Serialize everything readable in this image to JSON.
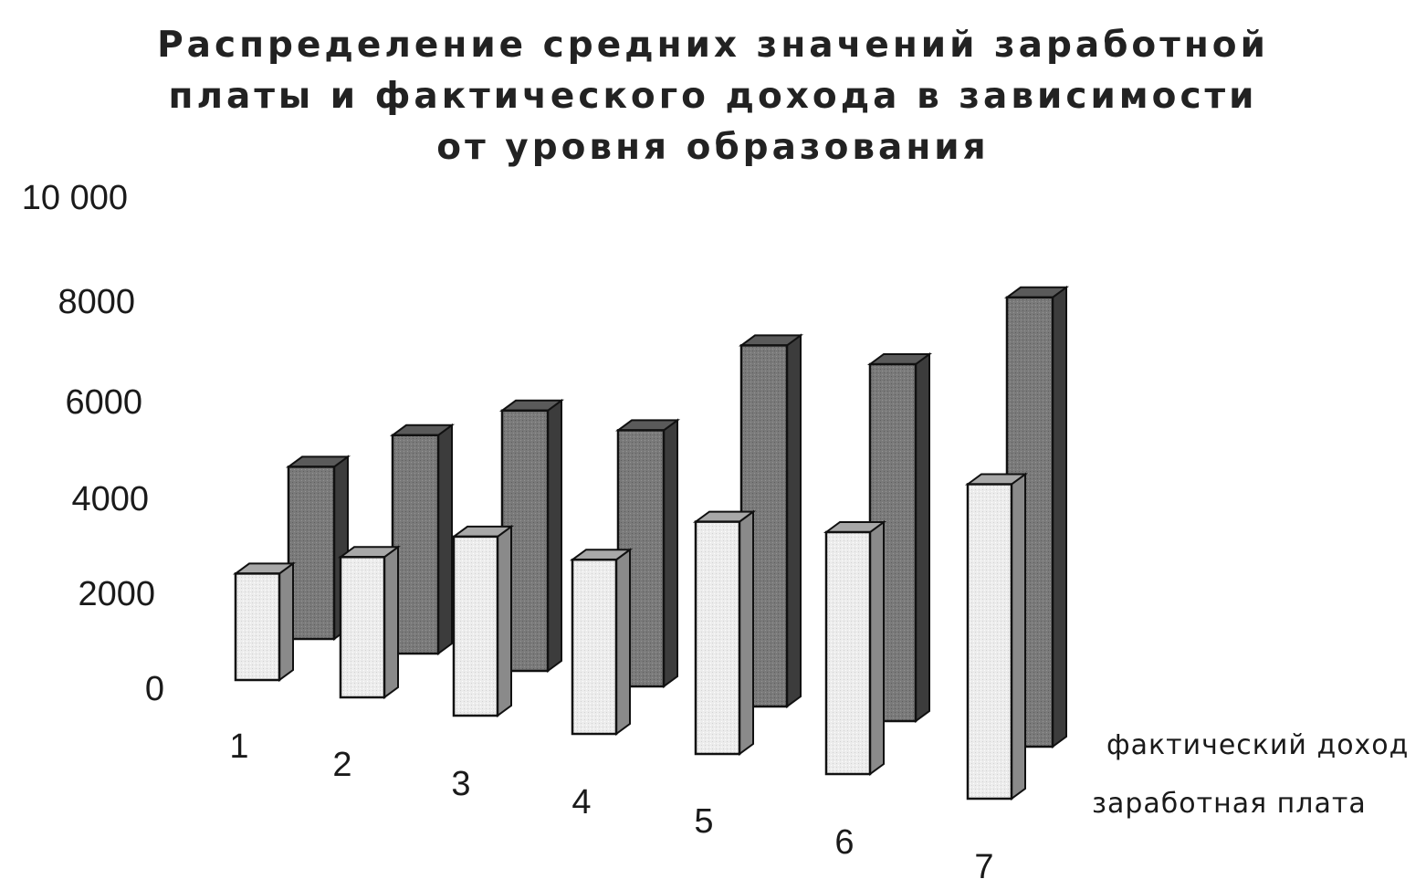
{
  "chart_data": {
    "type": "bar",
    "variant": "3d-clustered-depth",
    "title_lines": [
      "Распределение средних значений заработной",
      "платы и фактического дохода в зависимости",
      "от уровня образования"
    ],
    "categories": [
      "1",
      "2",
      "3",
      "4",
      "5",
      "6",
      "7"
    ],
    "series": [
      {
        "name": "заработная плата",
        "values": [
          2200,
          2900,
          3700,
          3600,
          4800,
          5000,
          6500
        ],
        "color": "#e8e8e8"
      },
      {
        "name": "фактический доход",
        "values": [
          4100,
          5200,
          6200,
          6100,
          8600,
          8500,
          10700
        ],
        "color": "#7a7a7a"
      }
    ],
    "yticks": [
      "0",
      "2000",
      "4000",
      "6000",
      "8000",
      "10000"
    ],
    "ytick_labels": [
      "0",
      "2000",
      "4000",
      "6000",
      "8000",
      "10 000"
    ],
    "ylim": [
      0,
      10000
    ],
    "xlabel": "",
    "ylabel": "",
    "legend_position": "right",
    "grid": false
  }
}
